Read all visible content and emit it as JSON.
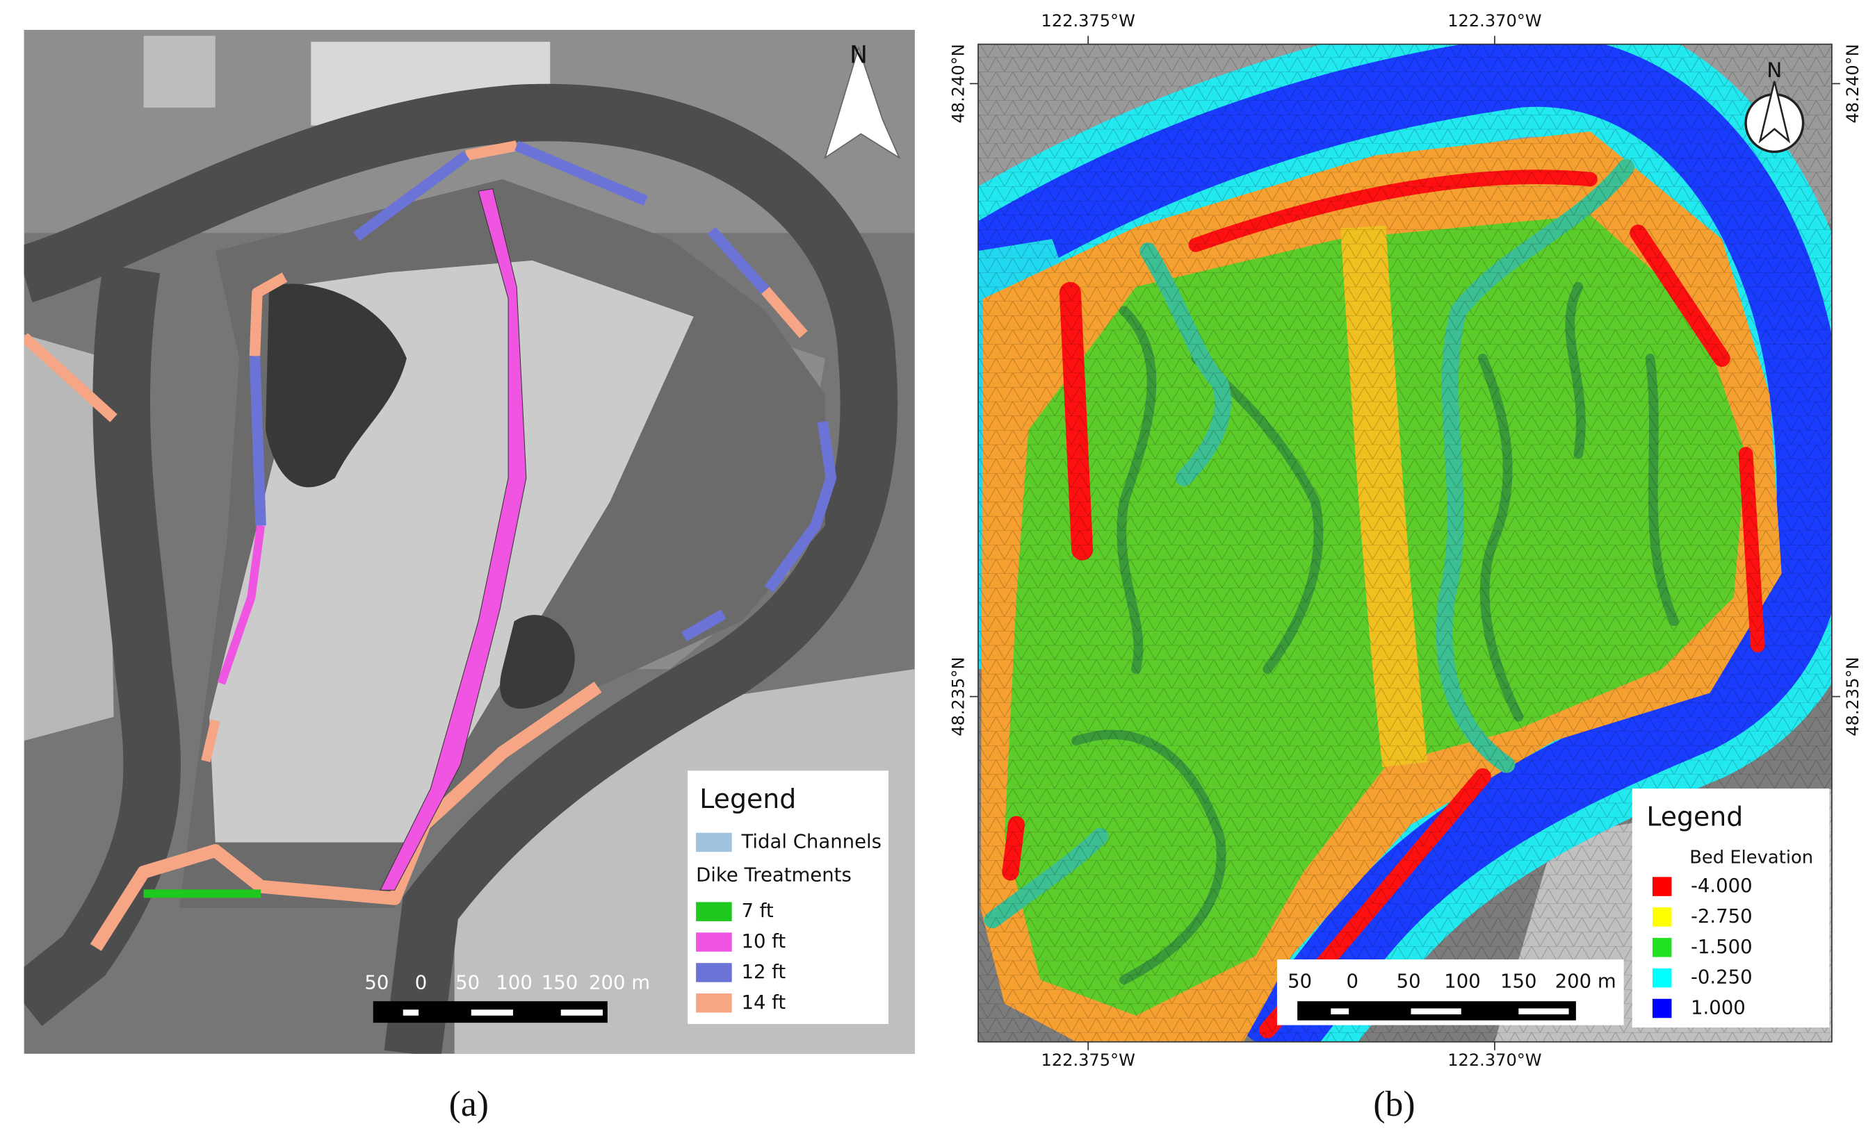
{
  "panel_a": {
    "north": "N",
    "legend": {
      "title": "Legend",
      "items": [
        {
          "label": "Tidal Channels",
          "color": "#9fc2de"
        }
      ],
      "section": "Dike Treatments",
      "treatments": [
        {
          "label": "7 ft",
          "color": "#1ec81e"
        },
        {
          "label": "10 ft",
          "color": "#ef55e0"
        },
        {
          "label": "12 ft",
          "color": "#6b74d6"
        },
        {
          "label": "14 ft",
          "color": "#f6a684"
        }
      ]
    },
    "scale_labels": [
      "50",
      "0",
      "50",
      "100",
      "150",
      "200 m"
    ],
    "caption": "(a)"
  },
  "panel_b": {
    "top_labels": [
      "122.375°W",
      "122.370°W"
    ],
    "bottom_labels": [
      "122.375°W",
      "122.370°W"
    ],
    "left_labels": [
      "48.240°N",
      "48.235°N"
    ],
    "right_labels": [
      "48.240°N",
      "48.235°N"
    ],
    "north": "N",
    "legend": {
      "title": "Legend",
      "subtitle": "Bed Elevation",
      "items": [
        {
          "label": "-4.000",
          "color": "#ff0000"
        },
        {
          "label": "-2.750",
          "color": "#ffff00"
        },
        {
          "label": "-1.500",
          "color": "#22e022"
        },
        {
          "label": "-0.250",
          "color": "#00ffff"
        },
        {
          "label": "1.000",
          "color": "#0000ff"
        }
      ]
    },
    "scale_labels": [
      "50",
      "0",
      "50",
      "100",
      "150",
      "200 m"
    ],
    "caption": "(b)"
  }
}
